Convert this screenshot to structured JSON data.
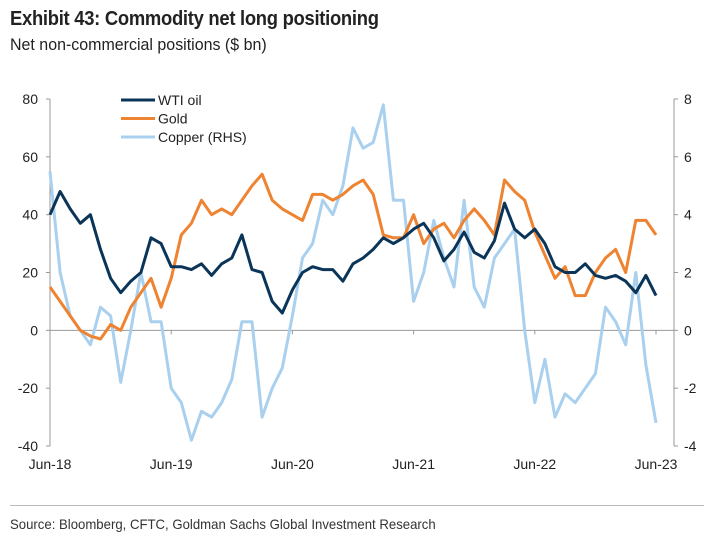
{
  "title": "Exhibit 43: Commodity net long positioning",
  "subtitle": "Net non-commercial positions ($ bn)",
  "source": "Source: Bloomberg, CFTC, Goldman Sachs Global Investment Research",
  "chart_data": {
    "type": "line",
    "title": "Exhibit 43: Commodity net long positioning",
    "ylabel": "Net non-commercial positions ($ bn)",
    "x_ticks": [
      "Jun-18",
      "Jun-19",
      "Jun-20",
      "Jun-21",
      "Jun-22",
      "Jun-23"
    ],
    "x_frequency": "monthly, Jun-2018 to Jun-2023",
    "ylim_left": [
      -40,
      80
    ],
    "yticks_left": [
      "80",
      "60",
      "40",
      "20",
      "0",
      "-20",
      "-40"
    ],
    "ylim_right": [
      -4,
      8
    ],
    "yticks_right": [
      "8",
      "6",
      "4",
      "2",
      "0",
      "-2",
      "-4"
    ],
    "legend_position": "top-left",
    "series": [
      {
        "name": "WTI oil",
        "axis": "left",
        "color": "#0b3558",
        "values": [
          40,
          48,
          42,
          37,
          40,
          28,
          18,
          13,
          17,
          20,
          32,
          30,
          22,
          22,
          21,
          23,
          19,
          23,
          25,
          33,
          21,
          20,
          10,
          6,
          14,
          20,
          22,
          21,
          21,
          17,
          23,
          25,
          28,
          32,
          30,
          32,
          35,
          37,
          32,
          24,
          28,
          34,
          27,
          25,
          31,
          44,
          35,
          32,
          35,
          30,
          22,
          20,
          20,
          23,
          19,
          18,
          19,
          17,
          13,
          19,
          12
        ]
      },
      {
        "name": "Gold",
        "axis": "left",
        "color": "#ee8331",
        "values": [
          15,
          10,
          5,
          0,
          -2,
          -3,
          2,
          0,
          8,
          13,
          18,
          8,
          18,
          33,
          37,
          45,
          40,
          42,
          40,
          45,
          50,
          54,
          45,
          42,
          40,
          38,
          47,
          47,
          45,
          47,
          50,
          52,
          47,
          33,
          32,
          32,
          40,
          30,
          35,
          37,
          32,
          38,
          42,
          38,
          33,
          52,
          48,
          45,
          34,
          26,
          18,
          22,
          12,
          12,
          20,
          25,
          28,
          20,
          38,
          38,
          33
        ]
      },
      {
        "name": "Copper (RHS)",
        "axis": "right",
        "color": "#a9d0ee",
        "values": [
          5.5,
          2,
          0.5,
          0,
          -0.5,
          0.8,
          0.5,
          -1.8,
          0,
          2,
          0.3,
          0.3,
          -2,
          -2.5,
          -3.8,
          -2.8,
          -3,
          -2.5,
          -1.7,
          0.3,
          0.3,
          -3,
          -2,
          -1.3,
          0.5,
          2.5,
          3,
          4.5,
          4,
          5,
          7,
          6.3,
          6.5,
          7.8,
          4.5,
          4.5,
          1,
          2,
          3.8,
          2.5,
          1.5,
          4.5,
          1.5,
          0.8,
          2.5,
          3,
          3.5,
          0,
          -2.5,
          -1,
          -3,
          -2.2,
          -2.5,
          -2,
          -1.5,
          0.8,
          0.3,
          -0.5,
          2,
          -1.2,
          -3.2
        ]
      }
    ]
  }
}
